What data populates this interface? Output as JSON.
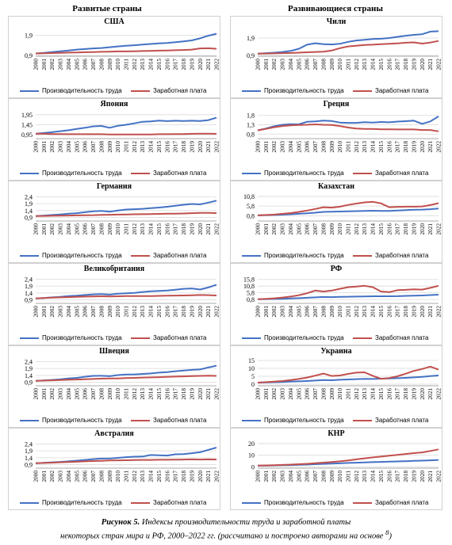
{
  "column_headers": {
    "developed": "Развитые страны",
    "developing": "Развивающиеся страны"
  },
  "caption": {
    "label": "Рисунок 5.",
    "text_line1": "Индексы производительности труда и заработной платы",
    "text_line2": "некоторых стран мира и РФ, 2000–2022 гг. (рассчитано и построено авторами на основе ",
    "footnote_mark": "8",
    "text_end": ")"
  },
  "legend": {
    "productivity": "Производительность труда",
    "wages": "Заработная плата"
  },
  "colors": {
    "productivity": "#4472c4",
    "wages": "#c0504d",
    "grid": "#d9d9d9",
    "axis": "#8c8c8c"
  },
  "chart_data": [
    {
      "type": "line",
      "title": "США",
      "x": [
        "2000",
        "2001",
        "2002",
        "2003",
        "2004",
        "2005",
        "2006",
        "2007",
        "2008",
        "2009",
        "2010",
        "2011",
        "2012",
        "2013",
        "2014",
        "2015",
        "2016",
        "2017",
        "2018",
        "2019",
        "2020",
        "2021",
        "2022"
      ],
      "yticks": [
        "0,9",
        "1,9"
      ],
      "ylim": [
        0.9,
        2.2
      ],
      "series": [
        {
          "name": "Производительность труда",
          "values": [
            1.0,
            1.03,
            1.07,
            1.11,
            1.15,
            1.19,
            1.22,
            1.25,
            1.27,
            1.31,
            1.35,
            1.38,
            1.41,
            1.44,
            1.47,
            1.5,
            1.52,
            1.56,
            1.6,
            1.65,
            1.75,
            1.88,
            1.98
          ]
        },
        {
          "name": "Заработная плата",
          "values": [
            1.0,
            1.01,
            1.02,
            1.03,
            1.04,
            1.05,
            1.06,
            1.07,
            1.08,
            1.09,
            1.1,
            1.1,
            1.11,
            1.12,
            1.13,
            1.14,
            1.15,
            1.16,
            1.17,
            1.19,
            1.25,
            1.26,
            1.23
          ]
        }
      ]
    },
    {
      "type": "line",
      "title": "Чили",
      "x": [
        "2000",
        "2001",
        "2002",
        "2003",
        "2004",
        "2005",
        "2006",
        "2007",
        "2008",
        "2009",
        "2010",
        "2011",
        "2012",
        "2013",
        "2014",
        "2015",
        "2016",
        "2017",
        "2018",
        "2019",
        "2020",
        "2021",
        "2022"
      ],
      "yticks": [
        "0,9",
        "1,9"
      ],
      "ylim": [
        0.9,
        2.4
      ],
      "series": [
        {
          "name": "Производительность труда",
          "values": [
            1.0,
            1.03,
            1.06,
            1.1,
            1.16,
            1.28,
            1.52,
            1.6,
            1.55,
            1.53,
            1.57,
            1.68,
            1.76,
            1.8,
            1.84,
            1.86,
            1.9,
            1.97,
            2.03,
            2.08,
            2.12,
            2.27,
            2.29
          ]
        },
        {
          "name": "Заработная плата",
          "values": [
            1.0,
            1.01,
            1.02,
            1.03,
            1.04,
            1.06,
            1.08,
            1.1,
            1.12,
            1.18,
            1.32,
            1.42,
            1.46,
            1.5,
            1.52,
            1.55,
            1.57,
            1.59,
            1.63,
            1.65,
            1.58,
            1.64,
            1.73
          ]
        }
      ]
    },
    {
      "type": "line",
      "title": "Япония",
      "x": [
        "2000",
        "2001",
        "2002",
        "2003",
        "2004",
        "2005",
        "2006",
        "2007",
        "2008",
        "2009",
        "2010",
        "2011",
        "2012",
        "2013",
        "2014",
        "2015",
        "2016",
        "2017",
        "2018",
        "2019",
        "2020",
        "2021",
        "2022"
      ],
      "yticks": [
        "0,95",
        "1,45",
        "1,95"
      ],
      "ylim": [
        0.8,
        2.1
      ],
      "series": [
        {
          "name": "Производительность труда",
          "values": [
            1.0,
            1.04,
            1.08,
            1.13,
            1.18,
            1.24,
            1.3,
            1.37,
            1.39,
            1.3,
            1.4,
            1.45,
            1.52,
            1.6,
            1.62,
            1.66,
            1.63,
            1.65,
            1.64,
            1.65,
            1.64,
            1.68,
            1.8
          ]
        },
        {
          "name": "Заработная плата",
          "values": [
            1.0,
            1.0,
            0.99,
            0.99,
            0.98,
            0.98,
            0.98,
            0.98,
            0.98,
            0.97,
            0.97,
            0.97,
            0.97,
            0.97,
            0.97,
            0.98,
            0.98,
            0.99,
            0.99,
            1.0,
            1.01,
            1.01,
            1.0
          ]
        }
      ]
    },
    {
      "type": "line",
      "title": "Греция",
      "x": [
        "2000",
        "2001",
        "2002",
        "2003",
        "2004",
        "2005",
        "2006",
        "2007",
        "2008",
        "2009",
        "2010",
        "2011",
        "2012",
        "2013",
        "2014",
        "2015",
        "2016",
        "2017",
        "2018",
        "2019",
        "2020",
        "2021",
        "2022"
      ],
      "yticks": [
        "0,8",
        "1,3",
        "1,8"
      ],
      "ylim": [
        0.6,
        2.0
      ],
      "series": [
        {
          "name": "Производительность труда",
          "values": [
            1.0,
            1.1,
            1.22,
            1.3,
            1.33,
            1.32,
            1.46,
            1.48,
            1.52,
            1.5,
            1.42,
            1.4,
            1.4,
            1.44,
            1.42,
            1.45,
            1.43,
            1.47,
            1.49,
            1.52,
            1.35,
            1.48,
            1.75
          ]
        },
        {
          "name": "Заработная плата",
          "values": [
            1.0,
            1.08,
            1.17,
            1.23,
            1.27,
            1.29,
            1.3,
            1.32,
            1.3,
            1.29,
            1.23,
            1.15,
            1.1,
            1.08,
            1.08,
            1.06,
            1.06,
            1.05,
            1.05,
            1.05,
            1.02,
            1.02,
            0.95
          ]
        }
      ]
    },
    {
      "type": "line",
      "title": "Германия",
      "x": [
        "2000",
        "2001",
        "2002",
        "2003",
        "2004",
        "2005",
        "2006",
        "2007",
        "2008",
        "2009",
        "2010",
        "2011",
        "2012",
        "2013",
        "2014",
        "2015",
        "2016",
        "2017",
        "2018",
        "2019",
        "2020",
        "2021",
        "2022"
      ],
      "yticks": [
        "0,9",
        "1,4",
        "1,9",
        "2,4"
      ],
      "ylim": [
        0.7,
        2.6
      ],
      "series": [
        {
          "name": "Производительность труда",
          "values": [
            1.0,
            1.04,
            1.08,
            1.12,
            1.17,
            1.21,
            1.28,
            1.35,
            1.38,
            1.32,
            1.4,
            1.48,
            1.5,
            1.53,
            1.58,
            1.62,
            1.68,
            1.75,
            1.82,
            1.88,
            1.85,
            1.98,
            2.12
          ]
        },
        {
          "name": "Заработная плата",
          "values": [
            1.0,
            1.01,
            1.02,
            1.03,
            1.04,
            1.05,
            1.06,
            1.07,
            1.09,
            1.1,
            1.11,
            1.12,
            1.13,
            1.14,
            1.15,
            1.16,
            1.17,
            1.18,
            1.19,
            1.21,
            1.23,
            1.23,
            1.22
          ]
        }
      ]
    },
    {
      "type": "line",
      "title": "Казахстан",
      "x": [
        "2000",
        "2001",
        "2002",
        "2003",
        "2004",
        "2005",
        "2006",
        "2007",
        "2008",
        "2009",
        "2010",
        "2011",
        "2012",
        "2013",
        "2014",
        "2015",
        "2016",
        "2017",
        "2018",
        "2019",
        "2020",
        "2021",
        "2022"
      ],
      "yticks": [
        "0,8",
        "5,8",
        "10,8"
      ],
      "ylim": [
        -1.5,
        12.0
      ],
      "series": [
        {
          "name": "Производительность труда",
          "values": [
            1.0,
            1.1,
            1.2,
            1.35,
            1.55,
            1.8,
            2.1,
            2.4,
            2.8,
            2.9,
            3.0,
            3.1,
            3.2,
            3.3,
            3.4,
            3.3,
            3.3,
            3.5,
            3.7,
            3.9,
            4.0,
            4.2,
            4.5
          ]
        },
        {
          "name": "Заработная плата",
          "values": [
            1.0,
            1.2,
            1.4,
            1.8,
            2.2,
            2.8,
            3.5,
            4.3,
            5.2,
            5.0,
            5.5,
            6.4,
            7.1,
            7.7,
            8.0,
            7.2,
            5.2,
            5.4,
            5.5,
            5.5,
            5.6,
            6.3,
            7.3
          ]
        }
      ]
    },
    {
      "type": "line",
      "title": "Великобритания",
      "x": [
        "2000",
        "2001",
        "2002",
        "2003",
        "2004",
        "2005",
        "2006",
        "2007",
        "2008",
        "2009",
        "2010",
        "2011",
        "2012",
        "2013",
        "2014",
        "2015",
        "2016",
        "2017",
        "2018",
        "2019",
        "2020",
        "2021",
        "2022"
      ],
      "yticks": [
        "0,9",
        "1,4",
        "1,9",
        "2,4"
      ],
      "ylim": [
        0.7,
        2.6
      ],
      "series": [
        {
          "name": "Производительность труда",
          "values": [
            1.0,
            1.04,
            1.08,
            1.12,
            1.17,
            1.2,
            1.25,
            1.3,
            1.32,
            1.28,
            1.35,
            1.38,
            1.41,
            1.47,
            1.52,
            1.55,
            1.58,
            1.64,
            1.7,
            1.73,
            1.65,
            1.8,
            2.0
          ]
        },
        {
          "name": "Заработная плата",
          "values": [
            1.0,
            1.03,
            1.06,
            1.08,
            1.1,
            1.12,
            1.14,
            1.15,
            1.16,
            1.15,
            1.16,
            1.17,
            1.17,
            1.18,
            1.18,
            1.19,
            1.2,
            1.21,
            1.22,
            1.23,
            1.25,
            1.24,
            1.22
          ]
        }
      ]
    },
    {
      "type": "line",
      "title": "РФ",
      "x": [
        "2000",
        "2001",
        "2002",
        "2003",
        "2004",
        "2005",
        "2006",
        "2007",
        "2008",
        "2009",
        "2010",
        "2011",
        "2012",
        "2013",
        "2014",
        "2015",
        "2016",
        "2017",
        "2018",
        "2019",
        "2020",
        "2021",
        "2022"
      ],
      "yticks": [
        "0,8",
        "5,8",
        "10,8",
        "15,8"
      ],
      "ylim": [
        -1.5,
        18.0
      ],
      "series": [
        {
          "name": "Производительность труда",
          "values": [
            1.0,
            1.1,
            1.2,
            1.35,
            1.55,
            1.8,
            2.1,
            2.4,
            2.7,
            2.6,
            2.8,
            2.9,
            3.0,
            3.1,
            3.2,
            3.2,
            3.2,
            3.3,
            3.5,
            3.7,
            3.8,
            4.1,
            4.4
          ]
        },
        {
          "name": "Заработная плата",
          "values": [
            1.0,
            1.3,
            1.7,
            2.3,
            3.0,
            4.0,
            5.5,
            7.5,
            6.8,
            7.5,
            8.8,
            10.0,
            10.5,
            11.0,
            10.0,
            6.8,
            6.3,
            7.8,
            8.0,
            8.4,
            8.2,
            9.5,
            11.0
          ]
        }
      ]
    },
    {
      "type": "line",
      "title": "Швеция",
      "x": [
        "2000",
        "2001",
        "2002",
        "2003",
        "2004",
        "2005",
        "2006",
        "2007",
        "2008",
        "2009",
        "2010",
        "2011",
        "2012",
        "2013",
        "2014",
        "2015",
        "2016",
        "2017",
        "2018",
        "2019",
        "2020",
        "2021",
        "2022"
      ],
      "yticks": [
        "0,9",
        "1,4",
        "1,9",
        "2,4"
      ],
      "ylim": [
        0.7,
        2.6
      ],
      "series": [
        {
          "name": "Производительность труда",
          "values": [
            1.0,
            1.03,
            1.07,
            1.11,
            1.18,
            1.22,
            1.3,
            1.36,
            1.37,
            1.34,
            1.42,
            1.46,
            1.47,
            1.5,
            1.54,
            1.6,
            1.64,
            1.7,
            1.75,
            1.8,
            1.83,
            1.97,
            2.1
          ]
        },
        {
          "name": "Заработная плата",
          "values": [
            1.0,
            1.02,
            1.04,
            1.06,
            1.08,
            1.1,
            1.12,
            1.14,
            1.16,
            1.17,
            1.18,
            1.2,
            1.22,
            1.24,
            1.25,
            1.27,
            1.29,
            1.31,
            1.33,
            1.35,
            1.36,
            1.38,
            1.36
          ]
        }
      ]
    },
    {
      "type": "line",
      "title": "Украина",
      "x": [
        "2000",
        "2001",
        "2002",
        "2003",
        "2004",
        "2005",
        "2006",
        "2007",
        "2008",
        "2009",
        "2010",
        "2011",
        "2012",
        "2013",
        "2014",
        "2015",
        "2016",
        "2017",
        "2018",
        "2019",
        "2020",
        "2021",
        "2022"
      ],
      "yticks": [
        "0",
        "5",
        "10",
        "15"
      ],
      "ylim": [
        -0.5,
        16.0
      ],
      "series": [
        {
          "name": "Производительность труда",
          "values": [
            1.0,
            1.1,
            1.25,
            1.4,
            1.6,
            1.8,
            2.0,
            2.3,
            2.6,
            2.5,
            2.8,
            3.0,
            3.2,
            3.4,
            3.3,
            3.5,
            3.6,
            3.8,
            4.0,
            4.3,
            4.6,
            5.1,
            5.5
          ]
        },
        {
          "name": "Заработная плата",
          "values": [
            1.0,
            1.3,
            1.6,
            2.0,
            2.6,
            3.3,
            4.2,
            5.4,
            6.7,
            5.2,
            5.5,
            6.5,
            7.3,
            7.5,
            5.3,
            3.4,
            3.9,
            5.0,
            6.6,
            8.4,
            9.6,
            11.1,
            9.2
          ]
        }
      ]
    },
    {
      "type": "line",
      "title": "Австралия",
      "x": [
        "2000",
        "2001",
        "2002",
        "2003",
        "2004",
        "2005",
        "2006",
        "2007",
        "2008",
        "2009",
        "2010",
        "2011",
        "2012",
        "2013",
        "2014",
        "2015",
        "2016",
        "2017",
        "2018",
        "2019",
        "2020",
        "2021",
        "2022"
      ],
      "yticks": [
        "0,9",
        "1,4",
        "1,9",
        "2,4"
      ],
      "ylim": [
        0.7,
        2.6
      ],
      "series": [
        {
          "name": "Производительность труда",
          "values": [
            1.0,
            1.03,
            1.07,
            1.1,
            1.14,
            1.19,
            1.24,
            1.3,
            1.34,
            1.35,
            1.39,
            1.44,
            1.48,
            1.49,
            1.6,
            1.58,
            1.56,
            1.65,
            1.66,
            1.73,
            1.8,
            1.97,
            2.14
          ]
        },
        {
          "name": "Заработная плата",
          "values": [
            1.0,
            1.02,
            1.04,
            1.07,
            1.09,
            1.11,
            1.14,
            1.16,
            1.18,
            1.2,
            1.21,
            1.22,
            1.23,
            1.24,
            1.24,
            1.25,
            1.25,
            1.26,
            1.27,
            1.28,
            1.27,
            1.28,
            1.27
          ]
        }
      ]
    },
    {
      "type": "line",
      "title": "КНР",
      "x": [
        "2000",
        "2001",
        "2002",
        "2003",
        "2004",
        "2005",
        "2006",
        "2007",
        "2008",
        "2009",
        "2010",
        "2011",
        "2012",
        "2013",
        "2014",
        "2015",
        "2016",
        "2017",
        "2018",
        "2019",
        "2020",
        "2021",
        "2022"
      ],
      "yticks": [
        "0",
        "10",
        "20"
      ],
      "ylim": [
        -0.5,
        22.0
      ],
      "series": [
        {
          "name": "Производительность труда",
          "values": [
            1.0,
            1.1,
            1.2,
            1.35,
            1.5,
            1.7,
            1.9,
            2.2,
            2.5,
            2.7,
            3.0,
            3.3,
            3.5,
            3.8,
            4.0,
            4.2,
            4.4,
            4.6,
            4.8,
            5.1,
            5.3,
            5.6,
            5.9
          ]
        },
        {
          "name": "Заработная плата",
          "values": [
            1.0,
            1.2,
            1.4,
            1.6,
            1.9,
            2.2,
            2.6,
            3.1,
            3.6,
            4.1,
            4.7,
            5.5,
            6.4,
            7.3,
            8.1,
            8.8,
            9.5,
            10.3,
            11.0,
            11.8,
            12.4,
            13.6,
            15.0
          ]
        }
      ]
    }
  ]
}
